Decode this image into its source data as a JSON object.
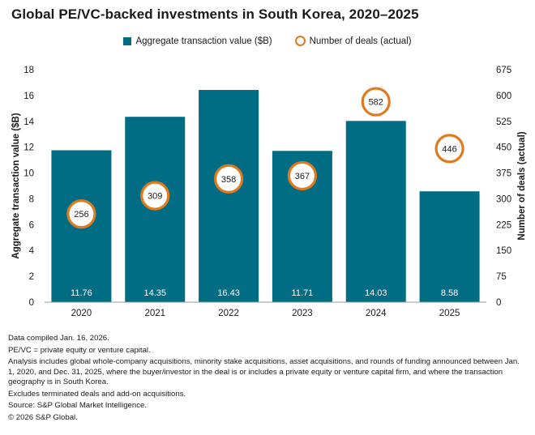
{
  "title": "Global PE/VC-backed investments in South Korea, 2020–2025",
  "legend": {
    "bar_label": "Aggregate transaction value ($B)",
    "circle_label": "Number of deals (actual)"
  },
  "colors": {
    "bar": "#006d84",
    "circle_stroke": "#e07a1f",
    "axis": "#9a9a9a"
  },
  "chart_data": {
    "type": "bar",
    "categories": [
      "2020",
      "2021",
      "2022",
      "2023",
      "2024",
      "2025"
    ],
    "series": [
      {
        "name": "Aggregate transaction value ($B)",
        "axis": "left",
        "values": [
          11.76,
          14.35,
          16.43,
          11.71,
          14.03,
          8.58
        ],
        "value_labels": [
          "11.76",
          "14.35",
          "16.43",
          "11.71",
          "14.03",
          "8.58"
        ]
      },
      {
        "name": "Number of deals (actual)",
        "axis": "right",
        "type": "scatter",
        "values": [
          256,
          309,
          358,
          367,
          582,
          446
        ],
        "value_labels": [
          "256",
          "309",
          "358",
          "367",
          "582",
          "446"
        ]
      }
    ],
    "ylabel": "Aggregate transaction value ($B)",
    "y2label": "Number of deals (actual)",
    "ylim": [
      0,
      18
    ],
    "y2lim": [
      0,
      675
    ],
    "yticks": [
      "0",
      "2",
      "4",
      "6",
      "8",
      "10",
      "12",
      "14",
      "16",
      "18"
    ],
    "y2ticks": [
      "0",
      "75",
      "150",
      "225",
      "300",
      "375",
      "450",
      "525",
      "600",
      "675"
    ],
    "legend_position": "top-center"
  },
  "notes": [
    "Data compiled Jan. 16, 2026.",
    "PE/VC = private equity or venture capital.",
    "Analysis includes global whole-company acquisitions, minority stake acquisitions, asset acquisitions, and rounds of funding announced between Jan. 1, 2020, and Dec. 31, 2025, where the buyer/investor in the deal is or includes a private equity or venture capital firm, and where the transaction geography is in South Korea.",
    "Excludes terminated deals and add-on acquisitions.",
    "Source: S&P Global Market Intelligence.",
    "© 2026 S&P Global."
  ]
}
